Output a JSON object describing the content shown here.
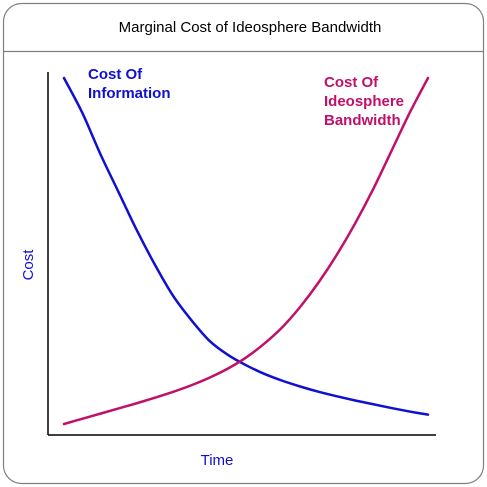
{
  "chart_data": {
    "type": "line",
    "title": "Marginal Cost of Ideosphere Bandwidth",
    "xlabel": "Time",
    "ylabel": "Cost",
    "xlim": [
      0,
      1
    ],
    "ylim": [
      0,
      1
    ],
    "grid": false,
    "legend": "none",
    "series": [
      {
        "name": "Cost Of Information",
        "label_lines": [
          "Cost Of",
          "Information"
        ],
        "color": "#1010d0",
        "x": [
          0.0,
          0.05,
          0.1,
          0.15,
          0.2,
          0.25,
          0.3,
          0.35,
          0.4,
          0.45,
          0.5,
          0.55,
          0.6,
          0.65,
          0.7,
          0.75,
          0.8,
          0.85,
          0.9,
          0.95,
          1.0
        ],
        "y": [
          1.0,
          0.9,
          0.78,
          0.67,
          0.56,
          0.46,
          0.37,
          0.3,
          0.24,
          0.2,
          0.17,
          0.145,
          0.125,
          0.108,
          0.093,
          0.08,
          0.068,
          0.057,
          0.046,
          0.036,
          0.027
        ]
      },
      {
        "name": "Cost Of Ideosphere Bandwidth",
        "label_lines": [
          "Cost Of",
          "Ideosphere",
          "Bandwidth"
        ],
        "color": "#c0106a",
        "x": [
          0.0,
          0.05,
          0.1,
          0.15,
          0.2,
          0.25,
          0.3,
          0.35,
          0.4,
          0.45,
          0.5,
          0.55,
          0.6,
          0.65,
          0.7,
          0.75,
          0.8,
          0.85,
          0.9,
          0.95,
          1.0
        ],
        "y": [
          0.0,
          0.015,
          0.03,
          0.045,
          0.06,
          0.076,
          0.093,
          0.112,
          0.134,
          0.16,
          0.192,
          0.232,
          0.28,
          0.34,
          0.41,
          0.49,
          0.58,
          0.68,
          0.79,
          0.9,
          1.0
        ]
      }
    ]
  },
  "colors": {
    "frame": "#808080",
    "axis": "#000000",
    "axis_label": "#1010d0"
  }
}
